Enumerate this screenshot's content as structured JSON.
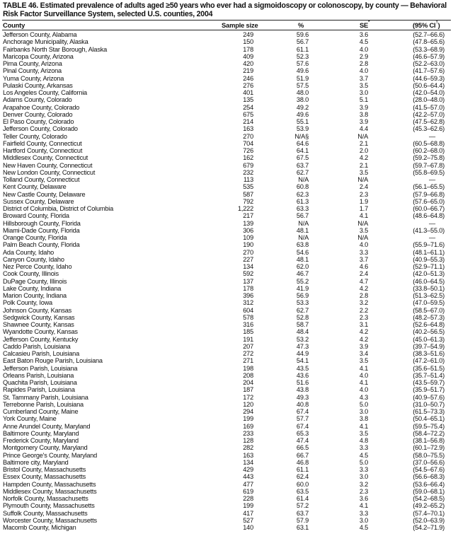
{
  "title": "TABLE 46. Estimated prevalence of adults aged ≥50 years who ever had a sigmoidoscopy or colonoscopy, by county — Behavioral Risk Factor Surveillance System, selected U.S. counties, 2004",
  "columns": [
    "County",
    "Sample size",
    "%",
    "SE",
    "(95% CI",
    ")"
  ],
  "column_footnotes": {
    "se": "*",
    "ci": "†"
  },
  "rows": [
    [
      "Jefferson County, Alabama",
      "249",
      "59.6",
      "3.6",
      "(52.7–66.6)"
    ],
    [
      "Anchorage Municipality, Alaska",
      "150",
      "56.7",
      "4.5",
      "(47.8–65.6)"
    ],
    [
      "Fairbanks North Star Borough, Alaska",
      "178",
      "61.1",
      "4.0",
      "(53.3–68.9)"
    ],
    [
      "Maricopa County, Arizona",
      "409",
      "52.3",
      "2.9",
      "(46.6–57.9)"
    ],
    [
      "Pima County, Arizona",
      "420",
      "57.6",
      "2.8",
      "(52.2–63.0)"
    ],
    [
      "Pinal County, Arizona",
      "219",
      "49.6",
      "4.0",
      "(41.7–57.6)"
    ],
    [
      "Yuma County, Arizona",
      "246",
      "51.9",
      "3.7",
      "(44.6–59.3)"
    ],
    [
      "Pulaski County, Arkansas",
      "276",
      "57.5",
      "3.5",
      "(50.6–64.4)"
    ],
    [
      "Los Angeles County, California",
      "401",
      "48.0",
      "3.0",
      "(42.0–54.0)"
    ],
    [
      "Adams County, Colorado",
      "135",
      "38.0",
      "5.1",
      "(28.0–48.0)"
    ],
    [
      "Arapahoe County, Colorado",
      "254",
      "49.2",
      "3.9",
      "(41.5–57.0)"
    ],
    [
      "Denver County, Colorado",
      "675",
      "49.6",
      "3.8",
      "(42.2–57.0)"
    ],
    [
      "El Paso County, Colorado",
      "214",
      "55.1",
      "3.9",
      "(47.5–62.8)"
    ],
    [
      "Jefferson County, Colorado",
      "163",
      "53.9",
      "4.4",
      "(45.3–62.6)"
    ],
    [
      "Teller County, Colorado",
      "270",
      "N/A§",
      "N/A",
      "—"
    ],
    [
      "Fairfield County, Connecticut",
      "704",
      "64.6",
      "2.1",
      "(60.5–68.8)"
    ],
    [
      "Hartford County, Connecticut",
      "726",
      "64.1",
      "2.0",
      "(60.2–68.0)"
    ],
    [
      "Middlesex County, Connecticut",
      "162",
      "67.5",
      "4.2",
      "(59.2–75.8)"
    ],
    [
      "New Haven County, Connecticut",
      "679",
      "63.7",
      "2.1",
      "(59.7–67.8)"
    ],
    [
      "New London County, Connecticut",
      "232",
      "62.7",
      "3.5",
      "(55.8–69.5)"
    ],
    [
      "Tolland County, Connecticut",
      "113",
      "N/A",
      "N/A",
      "—"
    ],
    [
      "Kent County, Delaware",
      "535",
      "60.8",
      "2.4",
      "(56.1–65.5)"
    ],
    [
      "New Castle County, Delaware",
      "587",
      "62.3",
      "2.3",
      "(57.9–66.8)"
    ],
    [
      "Sussex County, Delaware",
      "792",
      "61.3",
      "1.9",
      "(57.6–65.0)"
    ],
    [
      "District of Columbia, District of Columbia",
      "1,222",
      "63.3",
      "1.7",
      "(60.0–66.7)"
    ],
    [
      "Broward County, Florida",
      "217",
      "56.7",
      "4.1",
      "(48.6–64.8)"
    ],
    [
      "Hillsborough County, Florida",
      "139",
      "N/A",
      "N/A",
      "—"
    ],
    [
      "Miami-Dade County, Florida",
      "306",
      "48.1",
      "3.5",
      "(41.3–55.0)"
    ],
    [
      "Orange County, Florida",
      "109",
      "N/A",
      "N/A",
      "—"
    ],
    [
      "Palm Beach County, Florida",
      "190",
      "63.8",
      "4.0",
      "(55.9–71.6)"
    ],
    [
      "Ada County, Idaho",
      "270",
      "54.6",
      "3.3",
      "(48.1–61.1)"
    ],
    [
      "Canyon County, Idaho",
      "227",
      "48.1",
      "3.7",
      "(40.9–55.3)"
    ],
    [
      "Nez Perce County, Idaho",
      "134",
      "62.0",
      "4.6",
      "(52.9–71.1)"
    ],
    [
      "Cook County, Illinois",
      "592",
      "46.7",
      "2.4",
      "(42.0–51.3)"
    ],
    [
      "DuPage County, Illinois",
      "137",
      "55.2",
      "4.7",
      "(46.0–64.5)"
    ],
    [
      "Lake County, Indiana",
      "178",
      "41.9",
      "4.2",
      "(33.8–50.1)"
    ],
    [
      "Marion County, Indiana",
      "396",
      "56.9",
      "2.8",
      "(51.3–62.5)"
    ],
    [
      "Polk County, Iowa",
      "312",
      "53.3",
      "3.2",
      "(47.0–59.5)"
    ],
    [
      "Johnson County, Kansas",
      "604",
      "62.7",
      "2.2",
      "(58.5–67.0)"
    ],
    [
      "Sedgwick County, Kansas",
      "578",
      "52.8",
      "2.3",
      "(48.2–57.3)"
    ],
    [
      "Shawnee County, Kansas",
      "316",
      "58.7",
      "3.1",
      "(52.6–64.8)"
    ],
    [
      "Wyandotte County, Kansas",
      "185",
      "48.4",
      "4.2",
      "(40.2–56.5)"
    ],
    [
      "Jefferson County, Kentucky",
      "191",
      "53.2",
      "4.2",
      "(45.0–61.3)"
    ],
    [
      "Caddo Parish, Louisiana",
      "207",
      "47.3",
      "3.9",
      "(39.7–54.9)"
    ],
    [
      "Calcasieu Parish, Louisiana",
      "272",
      "44.9",
      "3.4",
      "(38.3–51.6)"
    ],
    [
      "East Baton Rouge Parish, Louisiana",
      "271",
      "54.1",
      "3.5",
      "(47.2–61.0)"
    ],
    [
      "Jefferson Parish, Louisiana",
      "198",
      "43.5",
      "4.1",
      "(35.6–51.5)"
    ],
    [
      "Orleans Parish, Louisiana",
      "208",
      "43.6",
      "4.0",
      "(35.7–51.4)"
    ],
    [
      "Quachita Parish, Louisiana",
      "204",
      "51.6",
      "4.1",
      "(43.5–59.7)"
    ],
    [
      "Rapides Parish, Louisiana",
      "187",
      "43.8",
      "4.0",
      "(35.9–51.7)"
    ],
    [
      "St. Tammany Parish, Louisiana",
      "172",
      "49.3",
      "4.3",
      "(40.9–57.6)"
    ],
    [
      "Terrebonne Parish, Louisiana",
      "120",
      "40.8",
      "5.0",
      "(31.0–50.7)"
    ],
    [
      "Cumberland County, Maine",
      "294",
      "67.4",
      "3.0",
      "(61.5–73.3)"
    ],
    [
      "York County, Maine",
      "199",
      "57.7",
      "3.8",
      "(50.4–65.1)"
    ],
    [
      "Anne Arundel County, Maryland",
      "169",
      "67.4",
      "4.1",
      "(59.5–75.4)"
    ],
    [
      "Baltimore County, Maryland",
      "233",
      "65.3",
      "3.5",
      "(58.4–72.2)"
    ],
    [
      "Frederick County, Maryland",
      "128",
      "47.4",
      "4.8",
      "(38.1–56.8)"
    ],
    [
      "Montgomery County, Maryland",
      "282",
      "66.5",
      "3.3",
      "(60.1–72.9)"
    ],
    [
      "Prince George's County, Maryland",
      "163",
      "66.7",
      "4.5",
      "(58.0–75.5)"
    ],
    [
      "Baltimore city, Maryland",
      "134",
      "46.8",
      "5.0",
      "(37.0–56.6)"
    ],
    [
      "Bristol County, Massachusetts",
      "429",
      "61.1",
      "3.3",
      "(54.5–67.6)"
    ],
    [
      "Essex County, Massachusetts",
      "443",
      "62.4",
      "3.0",
      "(56.6–68.3)"
    ],
    [
      "Hampden County, Massachusetts",
      "477",
      "60.0",
      "3.2",
      "(53.6–66.4)"
    ],
    [
      "Middlesex County, Massachusetts",
      "619",
      "63.5",
      "2.3",
      "(59.0–68.1)"
    ],
    [
      "Norfolk County, Massachusetts",
      "228",
      "61.4",
      "3.6",
      "(54.2–68.5)"
    ],
    [
      "Plymouth County, Massachusetts",
      "199",
      "57.2",
      "4.1",
      "(49.2–65.2)"
    ],
    [
      "Suffolk County, Massachusetts",
      "417",
      "63.7",
      "3.3",
      "(57.4–70.1)"
    ],
    [
      "Worcester County, Massachusetts",
      "527",
      "57.9",
      "3.0",
      "(52.0–63.9)"
    ],
    [
      "Macomb County, Michigan",
      "140",
      "63.1",
      "4.5",
      "(54.2–71.9)"
    ]
  ]
}
